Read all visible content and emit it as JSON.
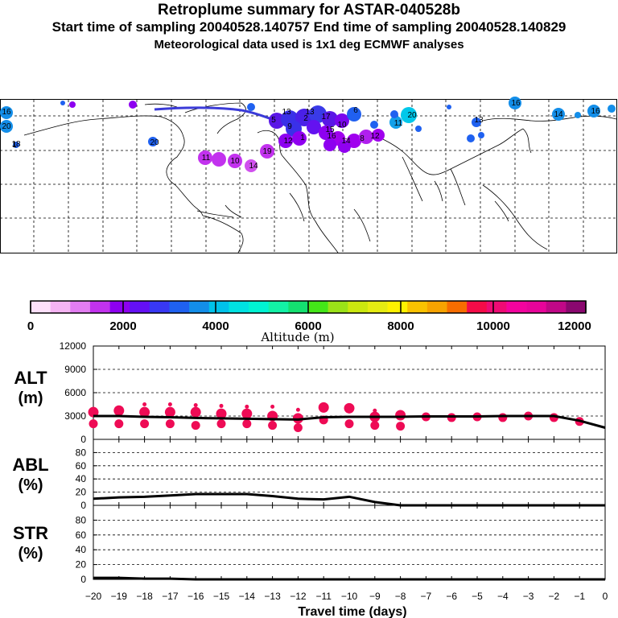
{
  "header": {
    "title": "Retroplume summary for ASTAR-040528b",
    "subtitle_times": "Start time of sampling 20040528.140757     End time of sampling 20040528.140829",
    "subtitle_met": "Meteorological data used is 1x1 deg ECMWF analyses"
  },
  "map": {
    "labels": [
      "16",
      "20",
      "18",
      "1",
      "20",
      "13",
      "2",
      "5",
      "6",
      "9",
      "20",
      "11",
      "13",
      "16",
      "14",
      "16",
      "13",
      "17",
      "12",
      "1",
      "16",
      "14",
      "15",
      "10",
      "8",
      "12",
      "14",
      "11",
      "19",
      "10"
    ]
  },
  "colorbar": {
    "ticks": [
      "0",
      "2000",
      "4000",
      "6000",
      "8000",
      "10000",
      "12000"
    ],
    "label": "Altitude (m)",
    "colors": [
      "#fde0fa",
      "#f5b4f3",
      "#e27df1",
      "#c232ee",
      "#8d00f0",
      "#6410f4",
      "#3838f4",
      "#1f61f0",
      "#138ee9",
      "#00c2ea",
      "#00e2e2",
      "#00f3d3",
      "#13f1a6",
      "#14e070",
      "#44e618",
      "#9be218",
      "#cbe80f",
      "#e6ec12",
      "#fff200",
      "#fac200",
      "#f7a300",
      "#f76d00",
      "#f50c48",
      "#ee0b74",
      "#f3039e",
      "#e8049a",
      "#c00887",
      "#8a086f"
    ]
  },
  "chart_data": [
    {
      "type": "line",
      "ylabel": "ALT (m)",
      "yticks": [
        "0",
        "3000",
        "6000",
        "9000",
        "12000"
      ],
      "ylim": [
        0,
        12000
      ],
      "x": [
        -20,
        -19,
        -18,
        -17,
        -16,
        -15,
        -14,
        -13,
        -12,
        -11,
        -10,
        -9,
        -8,
        -7,
        -6,
        -5,
        -4,
        -3,
        -2,
        -1,
        0
      ],
      "values": [
        3000,
        3000,
        2900,
        2850,
        2750,
        2700,
        2650,
        2600,
        2550,
        2850,
        2900,
        2900,
        2900,
        2950,
        2950,
        2950,
        3000,
        3000,
        3000,
        2400,
        1500
      ],
      "scatter": [
        {
          "x": -20,
          "ys": [
            3500,
            2000
          ]
        },
        {
          "x": -19,
          "ys": [
            3700,
            2000
          ]
        },
        {
          "x": -18,
          "ys": [
            4500,
            3500,
            2000
          ]
        },
        {
          "x": -17,
          "ys": [
            4500,
            3500,
            2000
          ]
        },
        {
          "x": -16,
          "ys": [
            4400,
            3500,
            1800
          ]
        },
        {
          "x": -15,
          "ys": [
            4300,
            3300,
            2000
          ]
        },
        {
          "x": -14,
          "ys": [
            4200,
            3300,
            2000
          ]
        },
        {
          "x": -13,
          "ys": [
            4200,
            3000,
            1800
          ]
        },
        {
          "x": -12,
          "ys": [
            3800,
            2700,
            1500
          ]
        },
        {
          "x": -11,
          "ys": [
            4100,
            2500
          ]
        },
        {
          "x": -10,
          "ys": [
            4000,
            2000
          ]
        },
        {
          "x": -9,
          "ys": [
            3700,
            2900,
            1800
          ]
        },
        {
          "x": -8,
          "ys": [
            3100,
            1700
          ]
        },
        {
          "x": -7,
          "ys": [
            2900
          ]
        },
        {
          "x": -6,
          "ys": [
            2800
          ]
        },
        {
          "x": -5,
          "ys": [
            2900
          ]
        },
        {
          "x": -4,
          "ys": [
            2800
          ]
        },
        {
          "x": -3,
          "ys": [
            3000
          ]
        },
        {
          "x": -2,
          "ys": [
            2800
          ]
        },
        {
          "x": -1,
          "ys": [
            2300
          ]
        }
      ]
    },
    {
      "type": "line",
      "ylabel": "ABL (%)",
      "yticks": [
        "0",
        "20",
        "40",
        "60",
        "80"
      ],
      "ylim": [
        0,
        100
      ],
      "x": [
        -20,
        -19,
        -18,
        -17,
        -16,
        -15,
        -14,
        -13,
        -12,
        -11,
        -10,
        -9,
        -8,
        -7,
        -6,
        -5,
        -4,
        -3,
        -2,
        -1,
        0
      ],
      "values": [
        10,
        12,
        13,
        15,
        17,
        17,
        17,
        14,
        10,
        9,
        13,
        5,
        0,
        0,
        0,
        0,
        0,
        0,
        0,
        0,
        0
      ]
    },
    {
      "type": "line",
      "ylabel": "STR (%)",
      "yticks": [
        "0",
        "20",
        "40",
        "60",
        "80"
      ],
      "ylim": [
        0,
        100
      ],
      "x": [
        -20,
        -19,
        -18,
        -17,
        -16,
        -15,
        -14,
        -13,
        -12,
        -11,
        -10,
        -9,
        -8,
        -7,
        -6,
        -5,
        -4,
        -3,
        -2,
        -1,
        0
      ],
      "values": [
        2,
        2,
        1,
        1,
        0,
        0,
        0,
        0,
        0,
        0,
        0,
        0,
        0,
        0,
        0,
        0,
        0,
        0,
        0,
        0,
        0
      ],
      "xlabel": "Travel time (days)",
      "xticks": [
        "−20",
        "−19",
        "−18",
        "−17",
        "−16",
        "−15",
        "−14",
        "−13",
        "−12",
        "−11",
        "−10",
        "−9",
        "−8",
        "−7",
        "−6",
        "−5",
        "−4",
        "−3",
        "−2",
        "−1",
        "0"
      ]
    }
  ]
}
